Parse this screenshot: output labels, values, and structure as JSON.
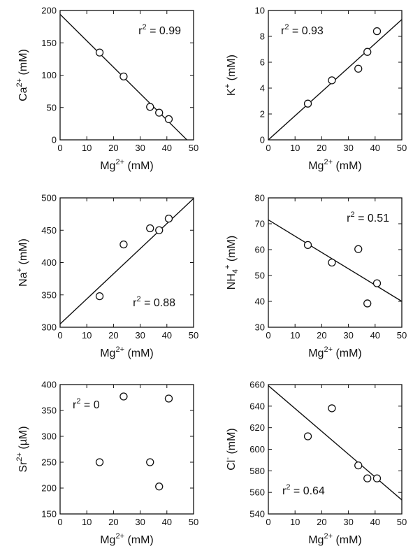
{
  "chart_data": [
    {
      "type": "scatter",
      "xlabel": {
        "base": "Mg",
        "sup": "2+",
        "unit": " (mM)"
      },
      "ylabel": {
        "base": "Ca",
        "sup": "2+",
        "unit": " (mM)"
      },
      "xlim": [
        0,
        50
      ],
      "ylim": [
        0,
        200
      ],
      "xticks": [
        0,
        10,
        20,
        30,
        40,
        50
      ],
      "yticks": [
        0,
        50,
        100,
        150,
        200
      ],
      "points": [
        [
          14.8,
          135
        ],
        [
          23.8,
          98
        ],
        [
          33.7,
          51
        ],
        [
          37.1,
          42
        ],
        [
          40.7,
          32
        ]
      ],
      "fit": [
        [
          0,
          194
        ],
        [
          47.5,
          0
        ]
      ],
      "annotation": {
        "prefix": "r",
        "sup": "2",
        "value": " = 0.99",
        "pos": "top-right"
      }
    },
    {
      "type": "scatter",
      "xlabel": {
        "base": "Mg",
        "sup": "2+",
        "unit": " (mM)"
      },
      "ylabel": {
        "base": "K",
        "sup": "+",
        "unit": " (mM)"
      },
      "xlim": [
        0,
        50
      ],
      "ylim": [
        0,
        10
      ],
      "xticks": [
        0,
        10,
        20,
        30,
        40,
        50
      ],
      "yticks": [
        0,
        2,
        4,
        6,
        8,
        10
      ],
      "points": [
        [
          14.8,
          2.8
        ],
        [
          23.8,
          4.6
        ],
        [
          33.7,
          5.5
        ],
        [
          37.1,
          6.8
        ],
        [
          40.7,
          8.4
        ]
      ],
      "fit": [
        [
          0,
          0
        ],
        [
          50,
          9.3
        ]
      ],
      "annotation": {
        "prefix": "r",
        "sup": "2",
        "value": " = 0.93",
        "pos": "top-left"
      }
    },
    {
      "type": "scatter",
      "xlabel": {
        "base": "Mg",
        "sup": "2+",
        "unit": " (mM)"
      },
      "ylabel": {
        "base": "Na",
        "sup": "+",
        "unit": " (mM)"
      },
      "xlim": [
        0,
        50
      ],
      "ylim": [
        300,
        500
      ],
      "xticks": [
        0,
        10,
        20,
        30,
        40,
        50
      ],
      "yticks": [
        300,
        350,
        400,
        450,
        500
      ],
      "points": [
        [
          14.8,
          348
        ],
        [
          23.8,
          428
        ],
        [
          33.7,
          453
        ],
        [
          37.1,
          450
        ],
        [
          40.7,
          468
        ]
      ],
      "fit": [
        [
          0,
          305
        ],
        [
          50,
          499
        ]
      ],
      "annotation": {
        "prefix": "r",
        "sup": "2",
        "value": " = 0.88",
        "pos": "bottom-right"
      }
    },
    {
      "type": "scatter",
      "xlabel": {
        "base": "Mg",
        "sup": "2+",
        "unit": " (mM)"
      },
      "ylabel": {
        "base": "NH",
        "sub": "4",
        "sup": "+",
        "unit": " (mM)"
      },
      "xlim": [
        0,
        50
      ],
      "ylim": [
        30,
        80
      ],
      "xticks": [
        0,
        10,
        20,
        30,
        40,
        50
      ],
      "yticks": [
        30,
        40,
        50,
        60,
        70,
        80
      ],
      "points": [
        [
          14.8,
          61.8
        ],
        [
          23.8,
          55
        ],
        [
          33.7,
          60.2
        ],
        [
          37.1,
          39.2
        ],
        [
          40.7,
          47
        ]
      ],
      "fit": [
        [
          0,
          71.5
        ],
        [
          50,
          40
        ]
      ],
      "annotation": {
        "prefix": "r",
        "sup": "2",
        "value": " = 0.51",
        "pos": "top-right"
      }
    },
    {
      "type": "scatter",
      "xlabel": {
        "base": "Mg",
        "sup": "2+",
        "unit": " (mM)"
      },
      "ylabel": {
        "base": "Sr",
        "sup": "2+",
        "unit": " (µM)"
      },
      "xlim": [
        0,
        50
      ],
      "ylim": [
        150,
        400
      ],
      "xticks": [
        0,
        10,
        20,
        30,
        40,
        50
      ],
      "yticks": [
        150,
        200,
        250,
        300,
        350,
        400
      ],
      "points": [
        [
          14.8,
          250
        ],
        [
          23.8,
          377
        ],
        [
          33.7,
          250
        ],
        [
          37.1,
          203
        ],
        [
          40.7,
          373
        ]
      ],
      "fit": null,
      "annotation": {
        "prefix": "r",
        "sup": "2",
        "value": " = 0",
        "pos": "top-left"
      }
    },
    {
      "type": "scatter",
      "xlabel": {
        "base": "Mg",
        "sup": "2+",
        "unit": " (mM)"
      },
      "ylabel": {
        "base": "Cl",
        "sup": "-",
        "unit": " (mM)"
      },
      "xlim": [
        0,
        50
      ],
      "ylim": [
        540,
        660
      ],
      "xticks": [
        0,
        10,
        20,
        30,
        40,
        50
      ],
      "yticks": [
        540,
        560,
        580,
        600,
        620,
        640,
        660
      ],
      "points": [
        [
          14.8,
          612
        ],
        [
          23.8,
          638
        ],
        [
          33.7,
          585
        ],
        [
          37.1,
          573
        ],
        [
          40.7,
          573
        ]
      ],
      "fit": [
        [
          0,
          659
        ],
        [
          50,
          553
        ]
      ],
      "annotation": {
        "prefix": "r",
        "sup": "2",
        "value": " = 0.64",
        "pos": "bottom-left"
      }
    }
  ]
}
